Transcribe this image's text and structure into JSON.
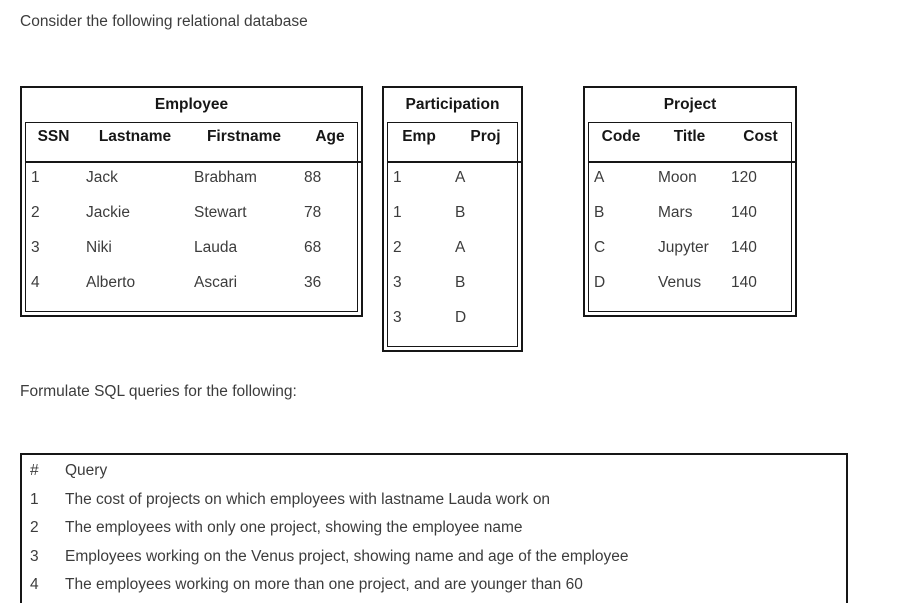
{
  "page": {
    "intro_text": "Consider the following relational database",
    "prompt_text": "Formulate SQL queries for the following:"
  },
  "colors": {
    "background": "#ffffff",
    "border": "#161616",
    "heading_text": "#161616",
    "body_text": "#3c3c3c"
  },
  "tables": [
    {
      "name": "Employee",
      "columns": [
        "SSN",
        "Lastname",
        "Firstname",
        "Age"
      ],
      "rows": [
        [
          "1",
          "Jack",
          "Brabham",
          "88"
        ],
        [
          "2",
          "Jackie",
          "Stewart",
          "78"
        ],
        [
          "3",
          "Niki",
          "Lauda",
          "68"
        ],
        [
          "4",
          "Alberto",
          "Ascari",
          "36"
        ]
      ]
    },
    {
      "name": "Participation",
      "columns": [
        "Emp",
        "Proj"
      ],
      "rows": [
        [
          "1",
          "A"
        ],
        [
          "1",
          "B"
        ],
        [
          "2",
          "A"
        ],
        [
          "3",
          "B"
        ],
        [
          "3",
          "D"
        ]
      ]
    },
    {
      "name": "Project",
      "columns": [
        "Code",
        "Title",
        "Cost"
      ],
      "rows": [
        [
          "A",
          "Moon",
          "120"
        ],
        [
          "B",
          "Mars",
          "140"
        ],
        [
          "C",
          "Jupyter",
          "140"
        ],
        [
          "D",
          "Venus",
          "140"
        ]
      ]
    }
  ],
  "query_table": {
    "columns": [
      "#",
      "Query"
    ],
    "rows": [
      [
        "1",
        "The cost of projects on which employees with lastname Lauda work on"
      ],
      [
        "2",
        "The employees with only one project, showing the employee name"
      ],
      [
        "3",
        "Employees working on the Venus project, showing name and age of the employee"
      ],
      [
        "4",
        "The employees working on more than one project, and are younger than 60"
      ]
    ]
  }
}
